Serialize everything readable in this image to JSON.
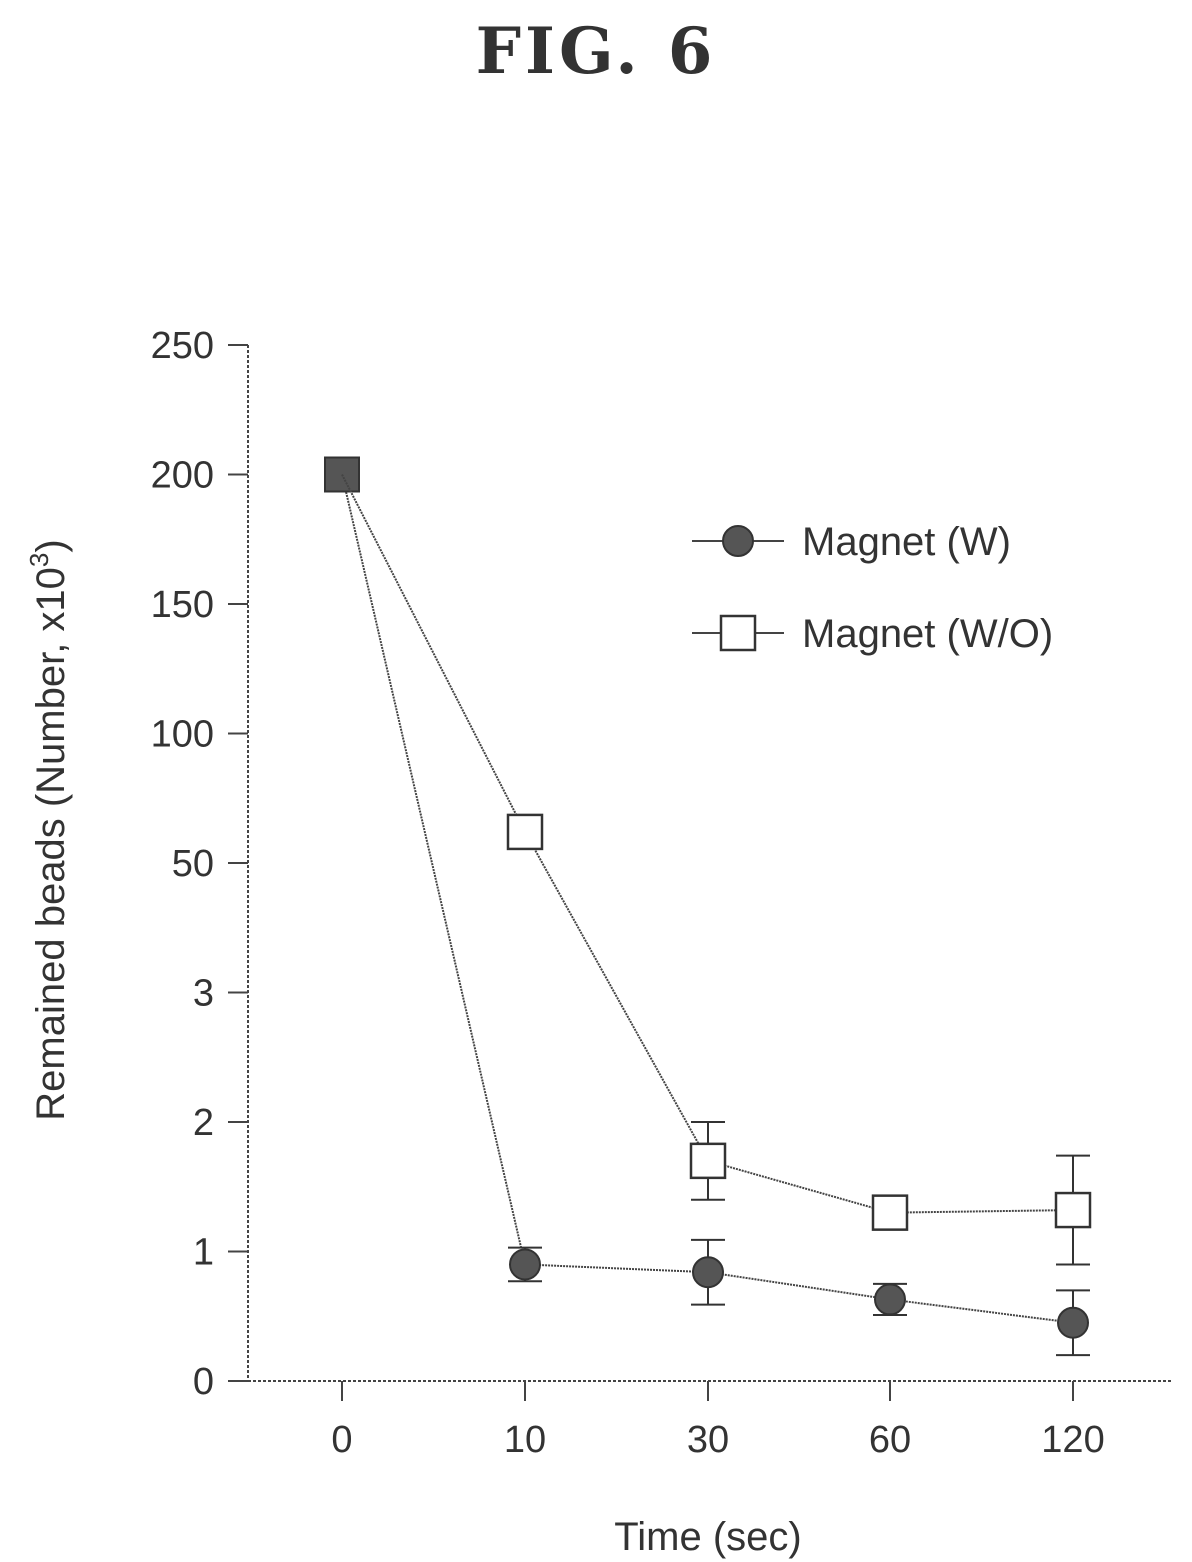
{
  "figure_title": "FIG.  6",
  "chart_data": {
    "type": "line",
    "xlabel": "Time (sec)",
    "ylabel_main": "Remained beads (Number, x10",
    "ylabel_sup": "3",
    "ylabel_close": ")",
    "categories": [
      "0",
      "10",
      "30",
      "60",
      "120"
    ],
    "y_tick_labels": [
      "0",
      "1",
      "2",
      "3",
      "50",
      "100",
      "150",
      "200",
      "250"
    ],
    "y_scale_note": "segmented axis: ticks are equally spaced",
    "series": [
      {
        "name": "Magnet (W)",
        "marker": "filled-circle",
        "values": [
          200,
          0.9,
          0.84,
          0.63,
          0.45
        ],
        "errors": [
          0,
          0.13,
          0.25,
          0.12,
          0.25
        ]
      },
      {
        "name": "Magnet (W/O)",
        "marker": "open-square",
        "values": [
          200,
          62,
          1.7,
          1.3,
          1.32
        ],
        "errors": [
          0,
          0,
          0.3,
          0,
          0.42
        ]
      }
    ],
    "legend_position": "top-right",
    "grid": false
  }
}
